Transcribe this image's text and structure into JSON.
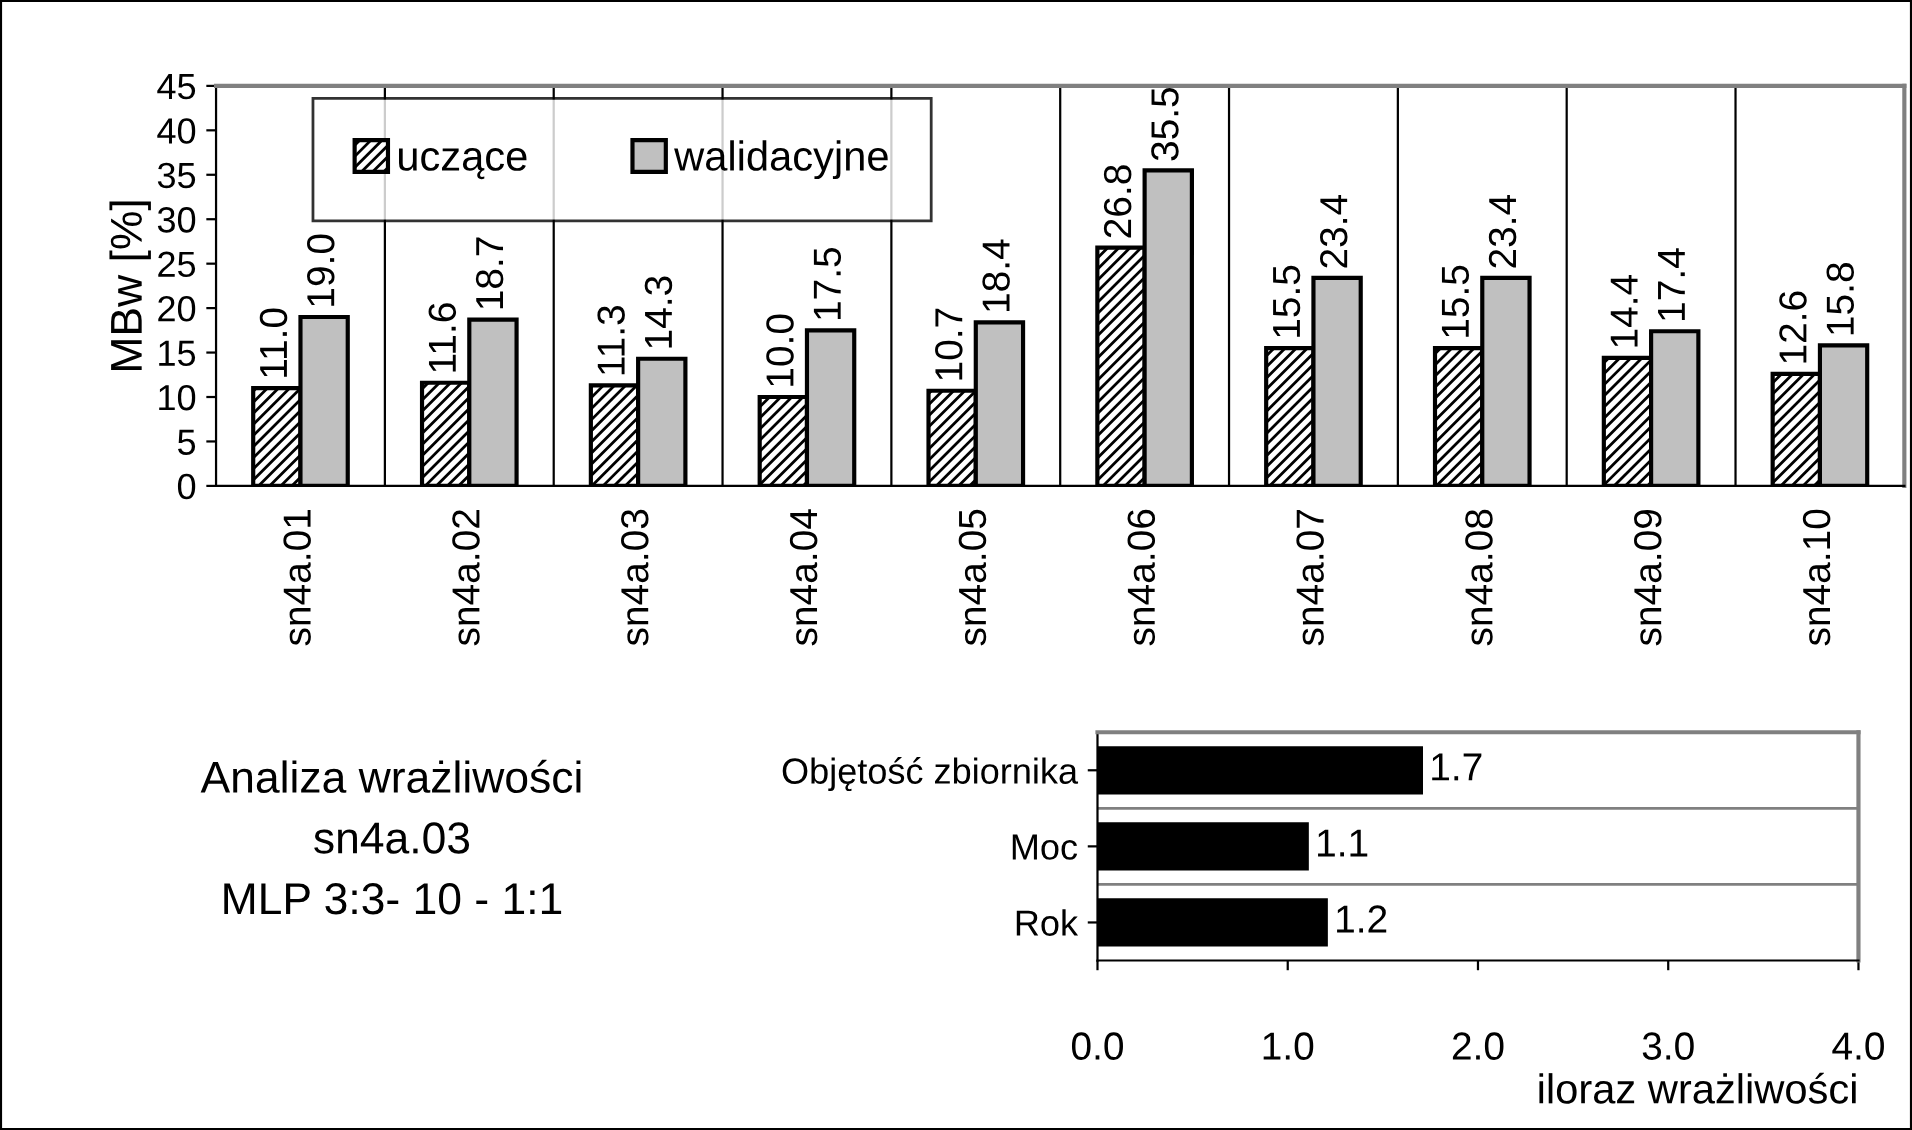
{
  "chart_data": [
    {
      "type": "bar",
      "ylabel": "MBw [%]",
      "categories": [
        "sn4a.01",
        "sn4a.02",
        "sn4a.03",
        "sn4a.04",
        "sn4a.05",
        "sn4a.06",
        "sn4a.07",
        "sn4a.08",
        "sn4a.09",
        "sn4a.10"
      ],
      "series": [
        {
          "name": "uczące",
          "color": "#000000",
          "values": [
            11.0,
            11.6,
            11.3,
            10.0,
            10.7,
            26.8,
            15.5,
            15.5,
            14.4,
            12.6
          ],
          "value_labels": [
            "11.0",
            "11.6",
            "11.3",
            "10.0",
            "10.7",
            "26.8",
            "15.5",
            "15.5",
            "14.4",
            "12.6"
          ]
        },
        {
          "name": "walidacyjne",
          "color": "#c0c0c0",
          "values": [
            19.0,
            18.7,
            14.3,
            17.5,
            18.4,
            35.5,
            23.4,
            23.4,
            17.4,
            15.8
          ],
          "value_labels": [
            "19.0",
            "18.7",
            "14.3",
            "17.5",
            "18.4",
            "35.5",
            "23.4",
            "23.4",
            "17.4",
            "15.8"
          ]
        }
      ],
      "ylim": [
        0,
        45
      ],
      "yticks": [
        0,
        5,
        10,
        15,
        20,
        25,
        30,
        35,
        40,
        45
      ],
      "grid": "x",
      "legend": "top left"
    },
    {
      "type": "bar",
      "orientation": "horizontal",
      "xlabel": "iloraz wrażliwości",
      "categories": [
        "Objętość zbiornika",
        "Moc",
        "Rok"
      ],
      "values": [
        1.7,
        1.1,
        1.2
      ],
      "color": "#000000",
      "xlim": [
        0,
        4
      ],
      "xticks": [
        {
          "value": 0,
          "label": "0.0"
        },
        {
          "value": 1,
          "label": "1.0"
        },
        {
          "value": 2,
          "label": "2.0"
        },
        {
          "value": 3,
          "label": "3.0"
        },
        {
          "value": 4,
          "label": "4.0"
        }
      ],
      "grid": "y",
      "data_labels": true,
      "annotations": [
        "Analiza wrażliwości\nsn4a.03\nMLP 3:3- 10 - 1:1"
      ]
    }
  ]
}
